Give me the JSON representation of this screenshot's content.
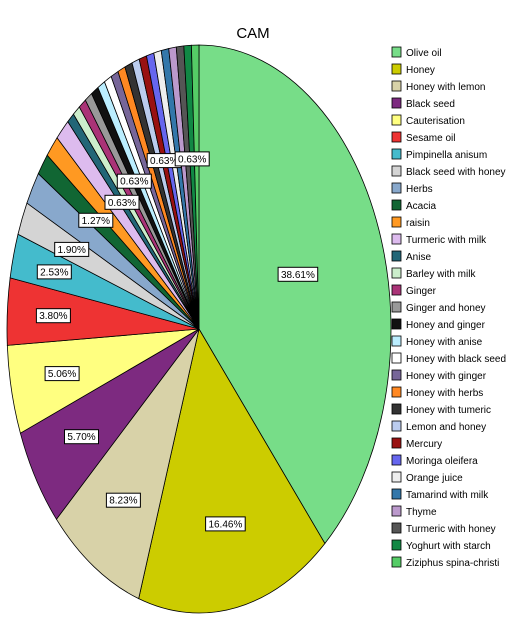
{
  "chart_data": {
    "type": "pie",
    "title": "CAM",
    "legend_position": "right",
    "slices": [
      {
        "label": "Olive oil",
        "value": 38.61,
        "data_label": "38.61%",
        "color": "#77dd88"
      },
      {
        "label": "Honey",
        "value": 16.46,
        "data_label": "16.46%",
        "color": "#cccc00"
      },
      {
        "label": "Honey with lemon",
        "value": 8.23,
        "data_label": "8.23%",
        "color": "#d8d2a8"
      },
      {
        "label": "Black seed",
        "value": 5.7,
        "data_label": "5.70%",
        "color": "#7d2a80"
      },
      {
        "label": "Cauterisation",
        "value": 5.06,
        "data_label": "5.06%",
        "color": "#ffff80"
      },
      {
        "label": "Sesame oil",
        "value": 3.8,
        "data_label": "3.80%",
        "color": "#ee3333"
      },
      {
        "label": "Pimpinella anisum",
        "value": 2.53,
        "data_label": "2.53%",
        "color": "#44bbcc"
      },
      {
        "label": "Black seed with honey",
        "value": 1.9,
        "data_label": "1.90%",
        "color": "#d4d4d4"
      },
      {
        "label": "Herbs",
        "value": 1.9,
        "data_label": "",
        "color": "#88a8cc"
      },
      {
        "label": "Acacia",
        "value": 1.27,
        "data_label": "1.27%",
        "color": "#116633"
      },
      {
        "label": "raisin",
        "value": 1.27,
        "data_label": "",
        "color": "#ff9922"
      },
      {
        "label": "Turmeric with milk",
        "value": 1.27,
        "data_label": "",
        "color": "#ddbbee"
      },
      {
        "label": "Anise",
        "value": 0.63,
        "data_label": "0.63%",
        "color": "#226677"
      },
      {
        "label": "Barley with milk",
        "value": 0.63,
        "data_label": "",
        "color": "#cceecc"
      },
      {
        "label": "Ginger",
        "value": 0.63,
        "data_label": "",
        "color": "#aa3377"
      },
      {
        "label": "Ginger and honey",
        "value": 0.63,
        "data_label": "",
        "color": "#999999"
      },
      {
        "label": "Honey and ginger",
        "value": 0.63,
        "data_label": "0.63%",
        "color": "#111111"
      },
      {
        "label": "Honey with anise",
        "value": 0.63,
        "data_label": "",
        "color": "#bbeeff"
      },
      {
        "label": "Honey with black seed",
        "value": 0.63,
        "data_label": "",
        "color": "#ffffff"
      },
      {
        "label": "Honey with ginger",
        "value": 0.63,
        "data_label": "",
        "color": "#776699"
      },
      {
        "label": "Honey with herbs",
        "value": 0.63,
        "data_label": "",
        "color": "#ff8822"
      },
      {
        "label": "Honey with tumeric",
        "value": 0.63,
        "data_label": "",
        "color": "#333333"
      },
      {
        "label": "Lemon and honey",
        "value": 0.63,
        "data_label": "",
        "color": "#bbccee"
      },
      {
        "label": "Mercury",
        "value": 0.63,
        "data_label": "0.63%",
        "color": "#991111"
      },
      {
        "label": "Moringa oleifera",
        "value": 0.63,
        "data_label": "",
        "color": "#6666ee"
      },
      {
        "label": "Orange juice",
        "value": 0.63,
        "data_label": "",
        "color": "#eeeeee"
      },
      {
        "label": "Tamarind with milk",
        "value": 0.63,
        "data_label": "",
        "color": "#3377aa"
      },
      {
        "label": "Thyme",
        "value": 0.63,
        "data_label": "",
        "color": "#bb99cc"
      },
      {
        "label": "Turmeric with honey",
        "value": 0.63,
        "data_label": "",
        "color": "#555555"
      },
      {
        "label": "Yoghurt with starch",
        "value": 0.63,
        "data_label": "0.63%",
        "color": "#118844"
      },
      {
        "label": "Ziziphus spina-christi",
        "value": 0.63,
        "data_label": "",
        "color": "#55cc66"
      }
    ]
  }
}
